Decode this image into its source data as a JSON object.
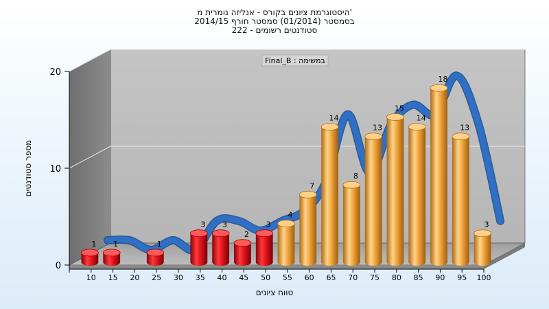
{
  "chart_data": {
    "type": "bar",
    "title_lines": [
      "היסטוגרמת ציונים בקורס - אנליזה נומרית מ'",
      "בסמסטר  (01/2014)  סמסטר חורף 2014/15",
      "222 - סטודנטים רשומים"
    ],
    "annotation": "Final_B : במשימה",
    "xlabel": "טווח ציונים",
    "ylabel": "מספר סטודנטים",
    "ylim": [
      0,
      20
    ],
    "yticks": [
      0,
      10,
      20
    ],
    "categories": [
      "10",
      "15",
      "20",
      "25",
      "30",
      "35",
      "40",
      "45",
      "50",
      "55",
      "60",
      "65",
      "70",
      "75",
      "80",
      "85",
      "90",
      "95",
      "100"
    ],
    "values": [
      1,
      1,
      0,
      1,
      0,
      3,
      3,
      2,
      3,
      4,
      7,
      14,
      8,
      13,
      15,
      14,
      18,
      13,
      3
    ],
    "value_labels": [
      "1",
      "1",
      "",
      "1",
      "",
      "3",
      "3",
      "2",
      "3",
      "4",
      "7",
      "14",
      "8",
      "13",
      "15",
      "14",
      "18",
      "13",
      "3"
    ],
    "fail_color": "#e0141c",
    "pass_color": "#f0a43c",
    "curve_color": "#2f6fc4",
    "grid": true,
    "legend": "none"
  }
}
